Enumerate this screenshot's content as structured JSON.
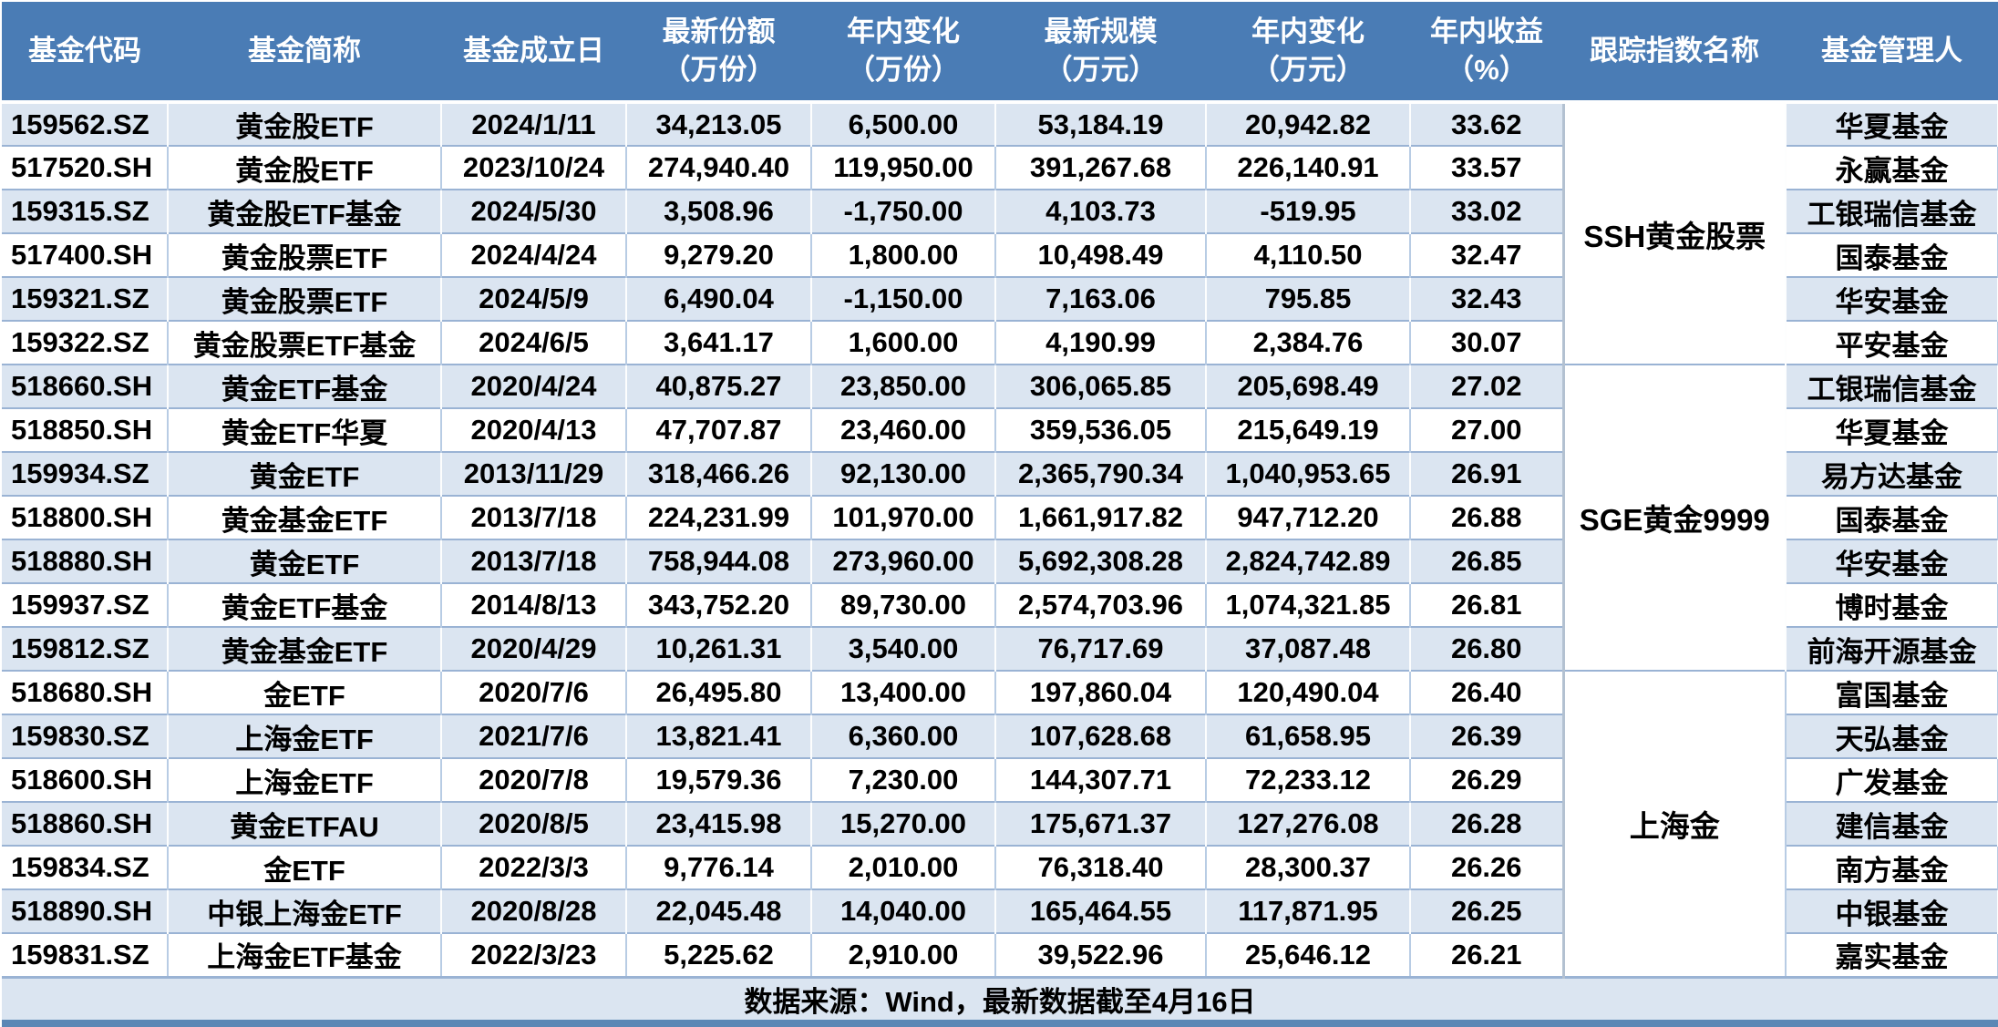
{
  "colors": {
    "header_bg": "#4a7cb5",
    "header_text": "#ffffff",
    "stripe_bg": "#dbe5f1",
    "row_white": "#ffffff",
    "grid_line": "#9ab3d4",
    "grid_line_light": "#b8cce4",
    "bottom_band": "#5b87b5",
    "body_text": "#000000"
  },
  "headers": [
    {
      "l1": "基金代码",
      "l2": ""
    },
    {
      "l1": "基金简称",
      "l2": ""
    },
    {
      "l1": "基金成立日",
      "l2": ""
    },
    {
      "l1": "最新份额",
      "l2": "（万份）"
    },
    {
      "l1": "年内变化",
      "l2": "（万份）"
    },
    {
      "l1": "最新规模",
      "l2": "（万元）"
    },
    {
      "l1": "年内变化",
      "l2": "（万元）"
    },
    {
      "l1": "年内收益",
      "l2": "（%）"
    },
    {
      "l1": "跟踪指数名称",
      "l2": ""
    },
    {
      "l1": "基金管理人",
      "l2": ""
    }
  ],
  "chart_data": {
    "type": "table",
    "columns": [
      "基金代码",
      "基金简称",
      "基金成立日",
      "最新份额（万份）",
      "年内变化（万份）",
      "最新规模（万元）",
      "年内变化（万元）",
      "年内收益（%）",
      "跟踪指数名称",
      "基金管理人"
    ],
    "rows": [
      [
        "159562.SZ",
        "黄金股ETF",
        "2024/1/11",
        "34,213.05",
        "6,500.00",
        "53,184.19",
        "20,942.82",
        "33.62",
        "SSH黄金股票",
        "华夏基金"
      ],
      [
        "517520.SH",
        "黄金股ETF",
        "2023/10/24",
        "274,940.40",
        "119,950.00",
        "391,267.68",
        "226,140.91",
        "33.57",
        "SSH黄金股票",
        "永赢基金"
      ],
      [
        "159315.SZ",
        "黄金股ETF基金",
        "2024/5/30",
        "3,508.96",
        "-1,750.00",
        "4,103.73",
        "-519.95",
        "33.02",
        "SSH黄金股票",
        "工银瑞信基金"
      ],
      [
        "517400.SH",
        "黄金股票ETF",
        "2024/4/24",
        "9,279.20",
        "1,800.00",
        "10,498.49",
        "4,110.50",
        "32.47",
        "SSH黄金股票",
        "国泰基金"
      ],
      [
        "159321.SZ",
        "黄金股票ETF",
        "2024/5/9",
        "6,490.04",
        "-1,150.00",
        "7,163.06",
        "795.85",
        "32.43",
        "SSH黄金股票",
        "华安基金"
      ],
      [
        "159322.SZ",
        "黄金股票ETF基金",
        "2024/6/5",
        "3,641.17",
        "1,600.00",
        "4,190.99",
        "2,384.76",
        "30.07",
        "SSH黄金股票",
        "平安基金"
      ],
      [
        "518660.SH",
        "黄金ETF基金",
        "2020/4/24",
        "40,875.27",
        "23,850.00",
        "306,065.85",
        "205,698.49",
        "27.02",
        "SGE黄金9999",
        "工银瑞信基金"
      ],
      [
        "518850.SH",
        "黄金ETF华夏",
        "2020/4/13",
        "47,707.87",
        "23,460.00",
        "359,536.05",
        "215,649.19",
        "27.00",
        "SGE黄金9999",
        "华夏基金"
      ],
      [
        "159934.SZ",
        "黄金ETF",
        "2013/11/29",
        "318,466.26",
        "92,130.00",
        "2,365,790.34",
        "1,040,953.65",
        "26.91",
        "SGE黄金9999",
        "易方达基金"
      ],
      [
        "518800.SH",
        "黄金基金ETF",
        "2013/7/18",
        "224,231.99",
        "101,970.00",
        "1,661,917.82",
        "947,712.20",
        "26.88",
        "SGE黄金9999",
        "国泰基金"
      ],
      [
        "518880.SH",
        "黄金ETF",
        "2013/7/18",
        "758,944.08",
        "273,960.00",
        "5,692,308.28",
        "2,824,742.89",
        "26.85",
        "SGE黄金9999",
        "华安基金"
      ],
      [
        "159937.SZ",
        "黄金ETF基金",
        "2014/8/13",
        "343,752.20",
        "89,730.00",
        "2,574,703.96",
        "1,074,321.85",
        "26.81",
        "SGE黄金9999",
        "博时基金"
      ],
      [
        "159812.SZ",
        "黄金基金ETF",
        "2020/4/29",
        "10,261.31",
        "3,540.00",
        "76,717.69",
        "37,087.48",
        "26.80",
        "SGE黄金9999",
        "前海开源基金"
      ],
      [
        "518680.SH",
        "金ETF",
        "2020/7/6",
        "26,495.80",
        "13,400.00",
        "197,860.04",
        "120,490.04",
        "26.40",
        "上海金",
        "富国基金"
      ],
      [
        "159830.SZ",
        "上海金ETF",
        "2021/7/6",
        "13,821.41",
        "6,360.00",
        "107,628.68",
        "61,658.95",
        "26.39",
        "上海金",
        "天弘基金"
      ],
      [
        "518600.SH",
        "上海金ETF",
        "2020/7/8",
        "19,579.36",
        "7,230.00",
        "144,307.71",
        "72,233.12",
        "26.29",
        "上海金",
        "广发基金"
      ],
      [
        "518860.SH",
        "黄金ETFAU",
        "2020/8/5",
        "23,415.98",
        "15,270.00",
        "175,671.37",
        "127,276.08",
        "26.28",
        "上海金",
        "建信基金"
      ],
      [
        "159834.SZ",
        "金ETF",
        "2022/3/3",
        "9,776.14",
        "2,010.00",
        "76,318.40",
        "28,300.37",
        "26.26",
        "上海金",
        "南方基金"
      ],
      [
        "518890.SH",
        "中银上海金ETF",
        "2020/8/28",
        "22,045.48",
        "14,040.00",
        "165,464.55",
        "117,871.95",
        "26.25",
        "上海金",
        "中银基金"
      ],
      [
        "159831.SZ",
        "上海金ETF基金",
        "2022/3/23",
        "5,225.62",
        "2,910.00",
        "39,522.96",
        "25,646.12",
        "26.21",
        "上海金",
        "嘉实基金"
      ]
    ],
    "footnote": "数据来源：Wind，最新数据截至4月16日"
  }
}
